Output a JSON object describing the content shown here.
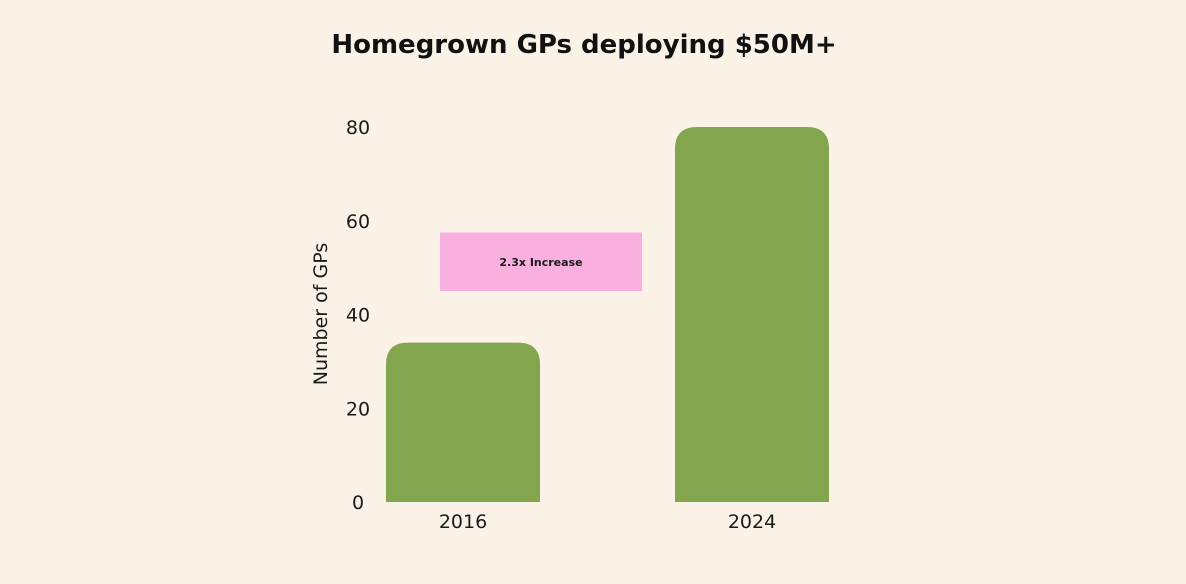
{
  "chart_data": {
    "type": "bar",
    "title": "Homegrown GPs deploying $50M+",
    "ylabel": "Number of GPs",
    "xlabel": "",
    "categories": [
      "2016",
      "2024"
    ],
    "values": [
      34,
      80
    ],
    "ylim": [
      0,
      80
    ],
    "yticks": [
      0,
      20,
      40,
      60,
      80
    ],
    "grid": false,
    "bar_color": "#83a54e",
    "annotation": {
      "text": "2.3x Increase",
      "color": "#f9b0de",
      "y_range": [
        45,
        57.5
      ]
    }
  },
  "colors": {
    "background": "#faf2e7",
    "bar": "#83a54e",
    "annotation_box": "#f9b0de"
  }
}
